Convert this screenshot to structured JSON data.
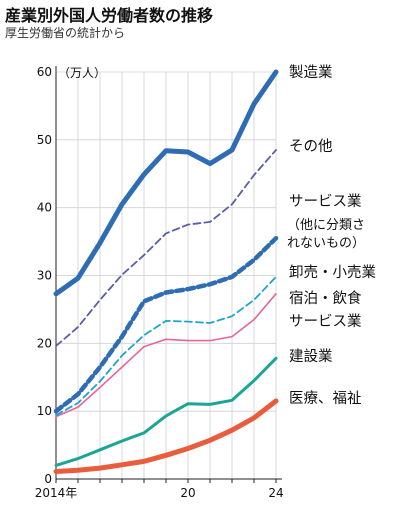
{
  "chart_data": {
    "type": "line",
    "title": "産業別外国人労働者数の推移",
    "subtitle": "厚生労働省の統計から",
    "ylabel": "（万人）",
    "xlabel": "",
    "ylim": [
      0,
      60
    ],
    "yticks": [
      0,
      10,
      20,
      30,
      40,
      50,
      60
    ],
    "x": [
      2014,
      2015,
      2016,
      2017,
      2018,
      2019,
      2020,
      2021,
      2022,
      2023,
      2024
    ],
    "xtick_labels": [
      {
        "x": 2014,
        "label": "2014年"
      },
      {
        "x": 2020,
        "label": "20"
      },
      {
        "x": 2024,
        "label": "24"
      }
    ],
    "grid": true,
    "legend": "direct labels at right",
    "series": [
      {
        "name": "製造業",
        "color": "#2e6db4",
        "style": "solid-thick",
        "values": [
          27.3,
          29.6,
          34.8,
          40.5,
          44.9,
          48.4,
          48.2,
          46.5,
          48.5,
          55.3,
          60.0
        ]
      },
      {
        "name": "その他",
        "color": "#5b5ea6",
        "style": "dashed-thin",
        "values": [
          19.6,
          22.4,
          26.4,
          30.1,
          33.0,
          36.2,
          37.5,
          37.9,
          40.5,
          44.8,
          48.5
        ]
      },
      {
        "name": "サービス業",
        "note": [
          "（他に分類さ",
          "れないもの）"
        ],
        "color": "#2e6db4",
        "style": "dashed-thick",
        "values": [
          10.0,
          12.5,
          16.5,
          21.0,
          26.2,
          27.5,
          28.0,
          28.7,
          29.8,
          32.3,
          35.5
        ]
      },
      {
        "name": "卸売・小売業",
        "color": "#1ea3cf",
        "style": "dashed-thin",
        "values": [
          9.4,
          11.2,
          14.4,
          18.2,
          21.2,
          23.3,
          23.2,
          23.0,
          24.0,
          26.4,
          29.8
        ]
      },
      {
        "name": "宿泊・飲食サービス業",
        "color": "#e8649a",
        "style": "solid-thin",
        "values": [
          9.2,
          10.6,
          13.5,
          16.5,
          19.5,
          20.6,
          20.4,
          20.4,
          21.0,
          23.5,
          27.3
        ]
      },
      {
        "name": "建設業",
        "color": "#1aa594",
        "style": "solid",
        "values": [
          2.0,
          3.0,
          4.3,
          5.6,
          6.8,
          9.3,
          11.1,
          11.0,
          11.6,
          14.5,
          17.8
        ]
      },
      {
        "name": "医療、福祉",
        "color": "#e85d3e",
        "style": "solid-thick",
        "values": [
          1.1,
          1.3,
          1.6,
          2.1,
          2.6,
          3.5,
          4.5,
          5.7,
          7.2,
          9.0,
          11.5
        ]
      }
    ]
  }
}
